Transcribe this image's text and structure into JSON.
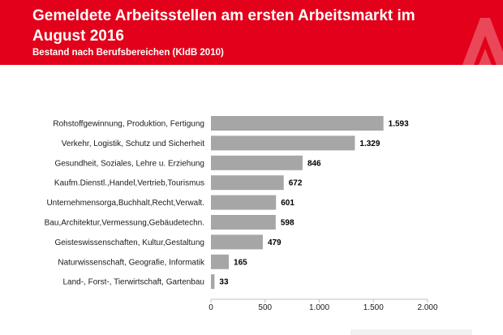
{
  "header": {
    "title": "Gemeldete Arbeitsstellen am ersten Arbeitsmarkt im August 2016",
    "subtitle": "Bestand nach Berufsbereichen (KldB 2010)",
    "brand_color": "#e2001a",
    "logo_icon": "agentur-fuer-arbeit-logo-icon"
  },
  "chart_data": {
    "type": "bar",
    "orientation": "horizontal",
    "categories": [
      "Rohstoffgewinnung, Produktion, Fertigung",
      "Verkehr, Logistik, Schutz und Sicherheit",
      "Gesundheit, Soziales, Lehre u. Erziehung",
      "Kaufm.Dienstl.,Handel,Vertrieb,Tourismus",
      "Unternehmensorga,Buchhalt,Recht,Verwalt.",
      "Bau,Architektur,Vermessung,Gebäudetechn.",
      "Geisteswissenschaften, Kultur,Gestaltung",
      "Naturwissenschaft, Geografie, Informatik",
      "Land-, Forst-, Tierwirtschaft, Gartenbau"
    ],
    "values": [
      1593,
      1329,
      846,
      672,
      601,
      598,
      479,
      165,
      33
    ],
    "value_labels": [
      "1.593",
      "1.329",
      "846",
      "672",
      "601",
      "598",
      "479",
      "165",
      "33"
    ],
    "xlim": [
      0,
      2000
    ],
    "ticks": [
      0,
      500,
      1000,
      1500,
      2000
    ],
    "tick_labels": [
      "0",
      "500",
      "1.000",
      "1.500",
      "2.000"
    ],
    "bar_color": "#a6a6a6",
    "grid": false
  }
}
